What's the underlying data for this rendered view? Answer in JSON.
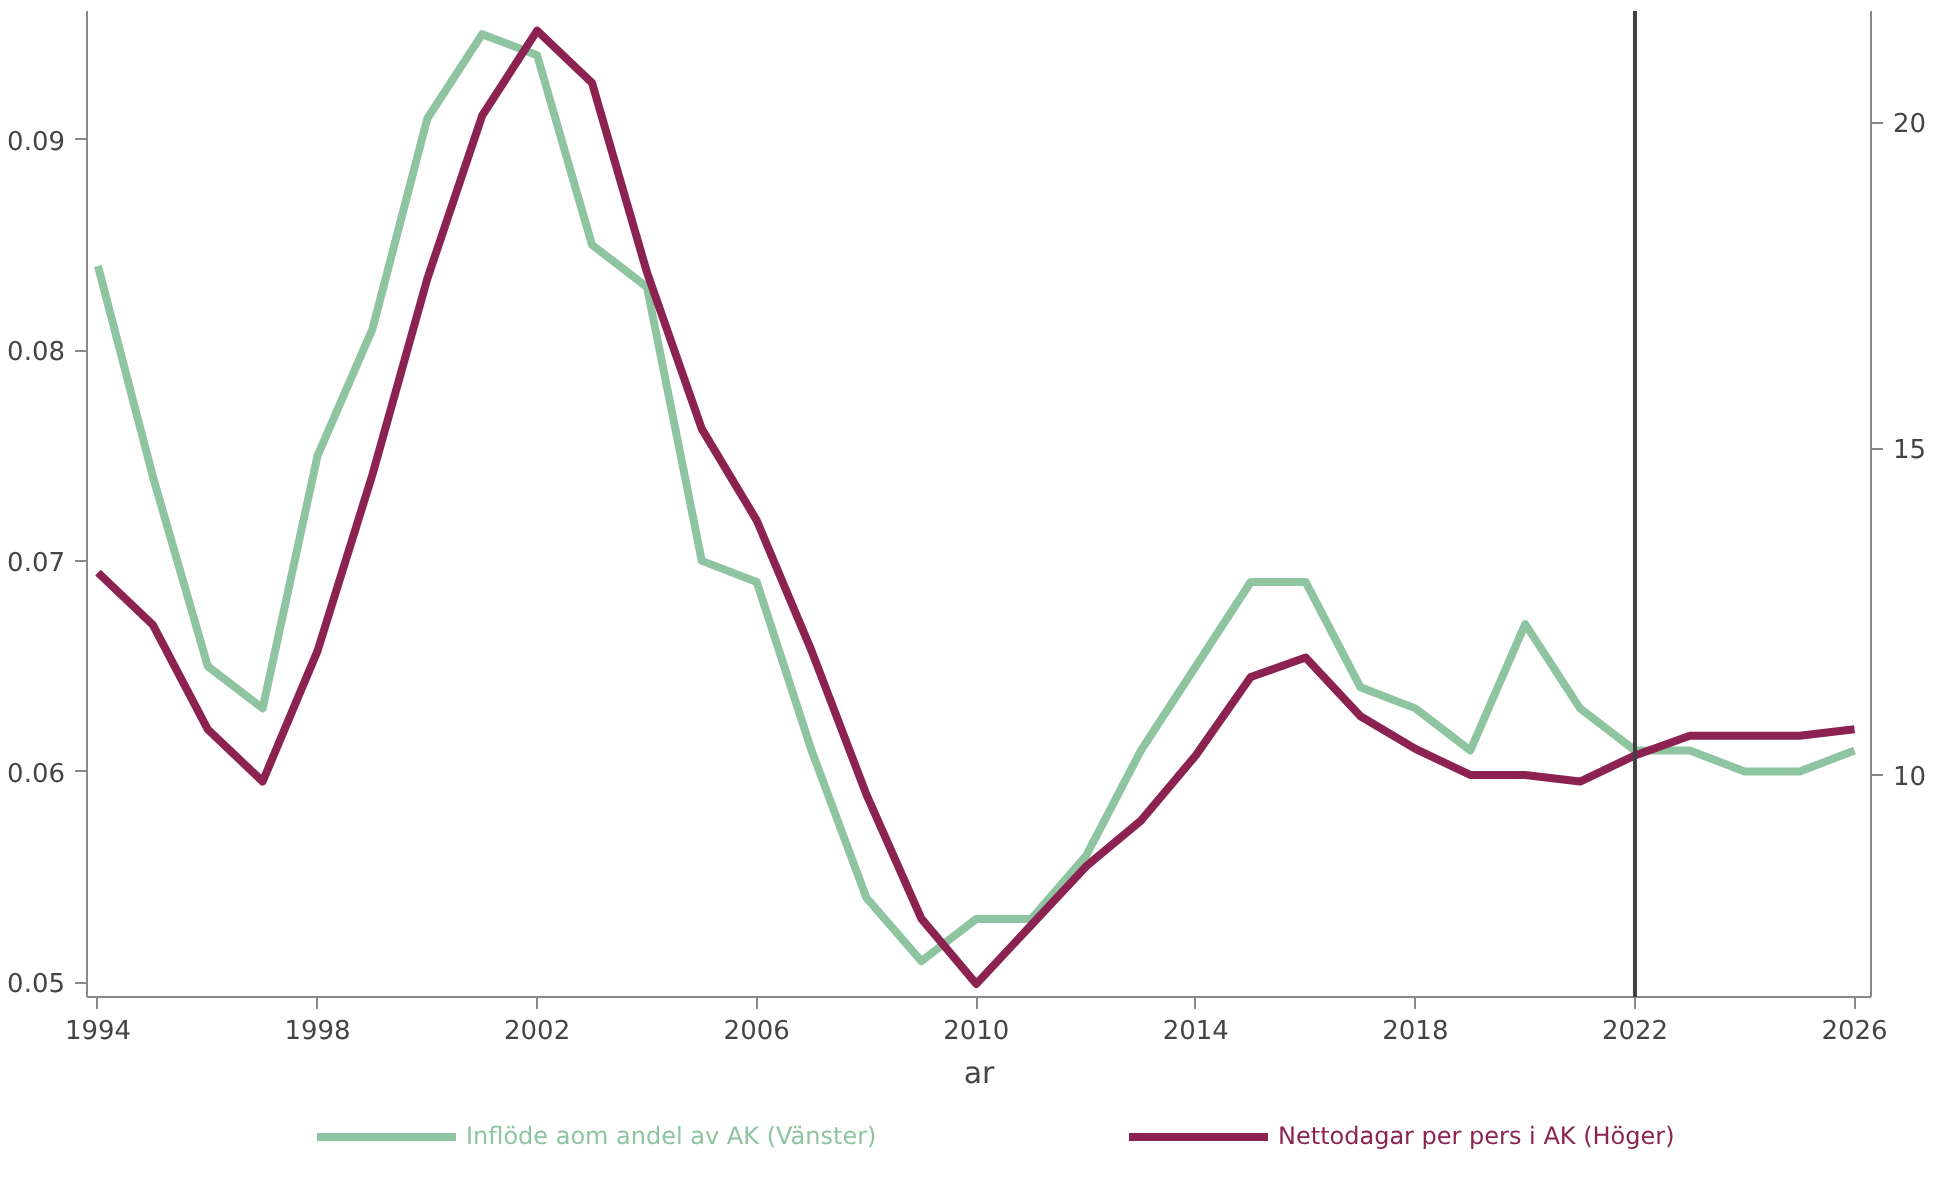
{
  "chart_data": {
    "type": "line",
    "xlabel": "ar",
    "x": [
      1994,
      1995,
      1996,
      1997,
      1998,
      1999,
      2000,
      2001,
      2002,
      2003,
      2004,
      2005,
      2006,
      2007,
      2008,
      2009,
      2010,
      2011,
      2012,
      2013,
      2014,
      2015,
      2016,
      2017,
      2018,
      2019,
      2020,
      2021,
      2022,
      2023,
      2024,
      2025,
      2026
    ],
    "series": [
      {
        "name": "Inflöde aom andel av AK (Vänster)",
        "color": "#8fc4a0",
        "values": [
          0.084,
          0.074,
          0.065,
          0.063,
          0.075,
          0.081,
          0.091,
          0.095,
          0.094,
          0.085,
          0.083,
          0.07,
          0.069,
          0.061,
          0.054,
          0.051,
          0.053,
          0.053,
          0.056,
          0.061,
          0.065,
          0.069,
          0.069,
          0.064,
          0.063,
          0.061,
          0.067,
          0.063,
          0.061,
          0.061,
          0.06,
          0.06,
          0.061
        ]
      },
      {
        "name": "Nettodagar per pers i AK (Höger)",
        "color": "#8b2252",
        "axis": "y2",
        "values": [
          13.1,
          12.3,
          10.7,
          9.9,
          11.9,
          14.6,
          17.6,
          20.1,
          21.4,
          20.6,
          17.7,
          15.3,
          13.9,
          11.9,
          9.7,
          7.8,
          6.8,
          7.7,
          8.6,
          9.3,
          10.3,
          11.5,
          11.8,
          10.9,
          10.4,
          10.0,
          10.0,
          9.9,
          10.3,
          10.6,
          10.6,
          10.6,
          10.7
        ]
      }
    ],
    "xlim": [
      1993.8,
      2026.3
    ],
    "xticks": [
      1994,
      1998,
      2002,
      2006,
      2010,
      2014,
      2018,
      2022,
      2026
    ],
    "ylim": [
      0.0493,
      0.0961
    ],
    "yticks": [
      0.05,
      0.06,
      0.07,
      0.08,
      0.09
    ],
    "y2lim": [
      6.6,
      21.7
    ],
    "y2ticks": [
      10,
      15,
      20
    ],
    "ref_lines": [
      {
        "axis": "x",
        "value": 2022,
        "color": "#404040"
      }
    ],
    "legend": "bottom",
    "grid": false
  }
}
